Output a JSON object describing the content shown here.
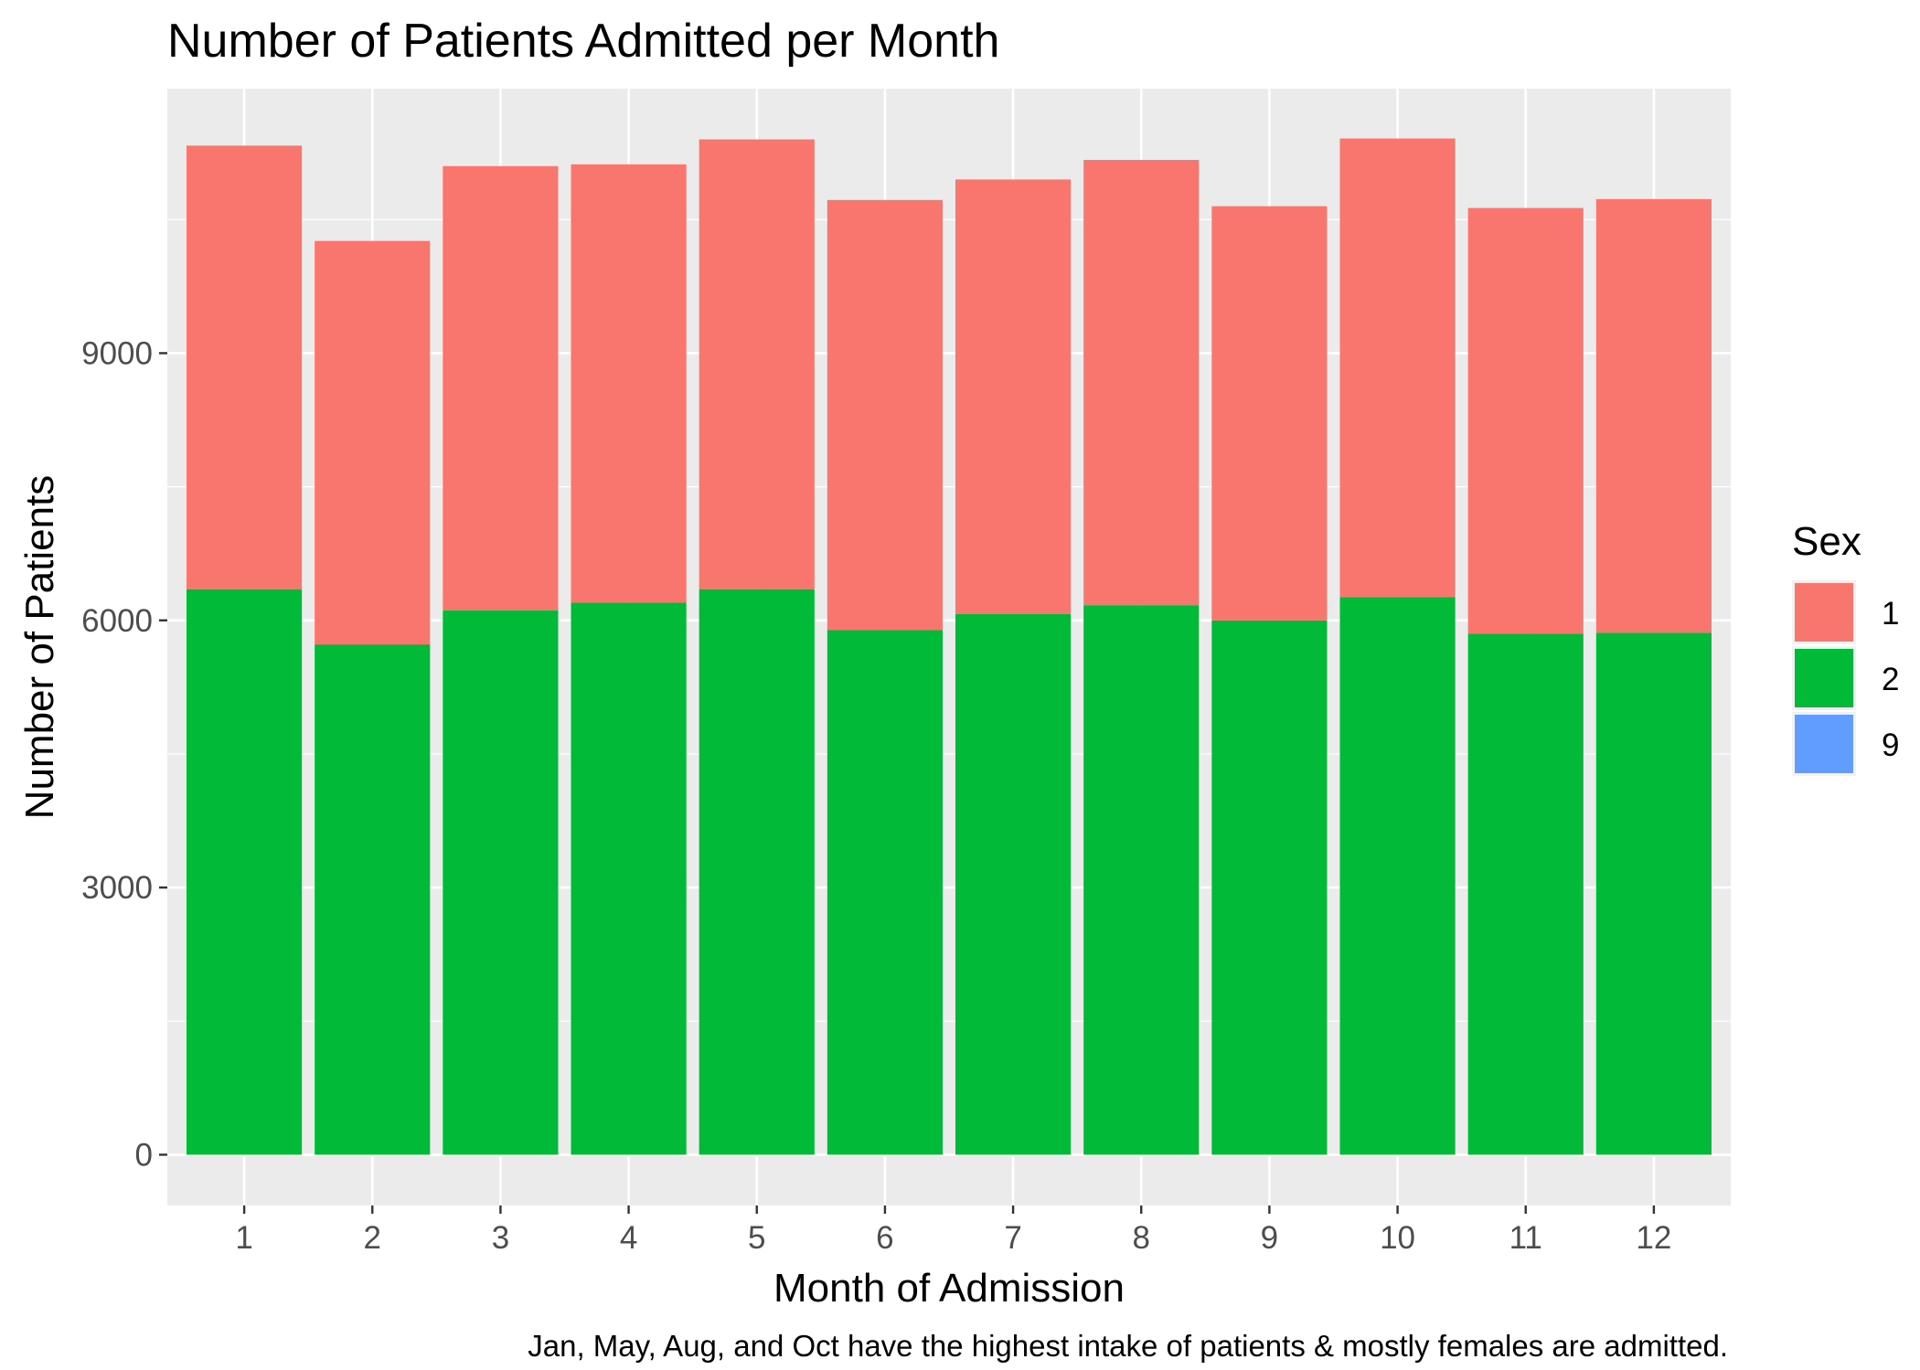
{
  "chart_data": {
    "type": "bar",
    "stacked": true,
    "title": "Number of Patients Admitted per Month",
    "xlabel": "Month of Admission",
    "ylabel": "Number of Patients",
    "caption": "Jan, May, Aug, and Oct have the highest intake of patients & mostly females are admitted.",
    "categories": [
      "1",
      "2",
      "3",
      "4",
      "5",
      "6",
      "7",
      "8",
      "9",
      "10",
      "11",
      "12"
    ],
    "series": [
      {
        "name": "1",
        "color": "#F8766D",
        "values": [
          4980,
          4530,
          4990,
          4920,
          5050,
          4830,
          4880,
          5000,
          4650,
          5150,
          4780,
          4870
        ]
      },
      {
        "name": "2",
        "color": "#00BA38",
        "values": [
          6350,
          5730,
          6110,
          6200,
          6350,
          5890,
          6070,
          6170,
          6000,
          6260,
          5850,
          5860
        ]
      },
      {
        "name": "9",
        "color": "#619CFF",
        "values": [
          0,
          0,
          0,
          0,
          0,
          0,
          0,
          0,
          0,
          0,
          0,
          0
        ]
      }
    ],
    "stack_order_bottom_to_top": [
      "9",
      "2",
      "1"
    ],
    "yticks": [
      0,
      3000,
      6000,
      9000
    ],
    "ylim": [
      -570,
      11970
    ],
    "legend": {
      "title": "Sex",
      "position": "right"
    },
    "grid": true,
    "background": "#EBEBEB"
  }
}
